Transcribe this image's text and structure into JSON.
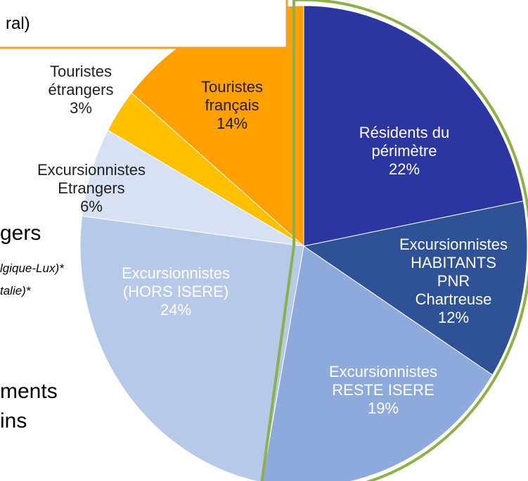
{
  "chart_data": {
    "type": "pie",
    "categories": [
      "Résidents du\npérimètre",
      "Excursionnistes\nHABITANTS\nPNR\nChartreuse",
      "Excursionnistes\nRESTE ISERE",
      "Excursionnistes\n(HORS ISERE)",
      "Excursionnistes\nEtrangers",
      "Touristes\nétrangers",
      "Touristes\nfrançais"
    ],
    "values": [
      22,
      12,
      19,
      24,
      6,
      3,
      14
    ],
    "value_labels": [
      "22%",
      "12%",
      "19%",
      "24%",
      "6%",
      "3%",
      "14%"
    ],
    "colors": [
      "#2b36a0",
      "#2f5196",
      "#8eaadc",
      "#b6c9e8",
      "#d7e1f3",
      "#ffc000",
      "#ff9f00"
    ],
    "annotations": [
      "ral)",
      "gers",
      "lgique-Lux)*",
      "talie)*",
      "ments",
      "ins"
    ]
  }
}
